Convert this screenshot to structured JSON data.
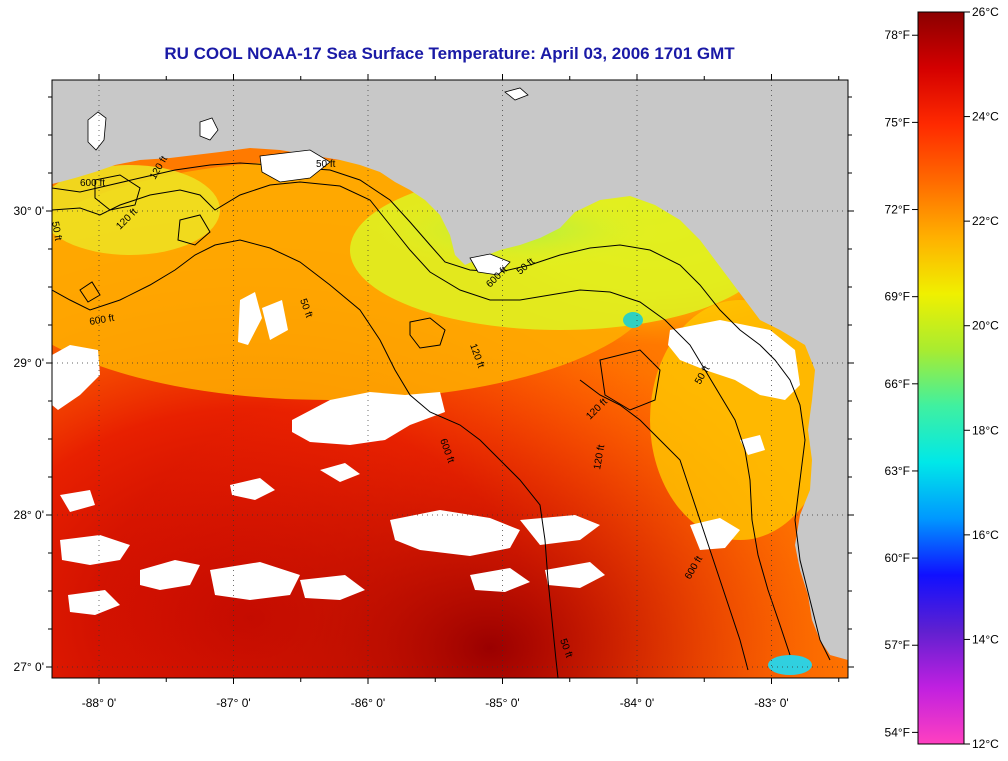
{
  "title": "RU COOL  NOAA-17  Sea Surface Temperature:  April 03, 2006 1701 GMT",
  "lat_ticks": [
    {
      "lat": 27,
      "label": "27° 0'"
    },
    {
      "lat": 28,
      "label": "28° 0'"
    },
    {
      "lat": 29,
      "label": "29° 0'"
    },
    {
      "lat": 30,
      "label": "30° 0'"
    }
  ],
  "lon_ticks": [
    {
      "lon": -88,
      "label": "-88° 0'"
    },
    {
      "lon": -87,
      "label": "-87° 0'"
    },
    {
      "lon": -86,
      "label": "-86° 0'"
    },
    {
      "lon": -85,
      "label": "-85° 0'"
    },
    {
      "lon": -84,
      "label": "-84° 0'"
    },
    {
      "lon": -83,
      "label": "-83° 0'"
    }
  ],
  "colorbar": {
    "celsius": [
      {
        "value": 26,
        "label": "26°C"
      },
      {
        "value": 24,
        "label": "24°C"
      },
      {
        "value": 22,
        "label": "22°C"
      },
      {
        "value": 20,
        "label": "20°C"
      },
      {
        "value": 18,
        "label": "18°C"
      },
      {
        "value": 16,
        "label": "16°C"
      },
      {
        "value": 14,
        "label": "14°C"
      },
      {
        "value": 12,
        "label": "12°C"
      }
    ],
    "fahrenheit": [
      {
        "value": 78,
        "label": "78°F"
      },
      {
        "value": 75,
        "label": "75°F"
      },
      {
        "value": 72,
        "label": "72°F"
      },
      {
        "value": 69,
        "label": "69°F"
      },
      {
        "value": 66,
        "label": "66°F"
      },
      {
        "value": 63,
        "label": "63°F"
      },
      {
        "value": 60,
        "label": "60°F"
      },
      {
        "value": 57,
        "label": "57°F"
      },
      {
        "value": 54,
        "label": "54°F"
      }
    ],
    "colors": [
      "#8b0000",
      "#d40000",
      "#ff2a00",
      "#ff6a00",
      "#ffb000",
      "#f0f000",
      "#a8ec30",
      "#40f0a0",
      "#00e8e8",
      "#0098ff",
      "#1010ff",
      "#6020d0",
      "#c020e0",
      "#ff40c0"
    ]
  },
  "contour_labels": [
    "50 ft",
    "120 ft",
    "600 ft",
    "50 ft",
    "120 ft",
    "600 ft",
    "50 ft",
    "120 ft",
    "600 ft",
    "50 ft",
    "120 ft",
    "600 ft",
    "50 ft",
    "120 ft",
    "600 ft",
    "50 ft"
  ],
  "colors": {
    "land": "#c8c8c8",
    "cloud": "#ffffff",
    "title": "#1a1aa6"
  }
}
